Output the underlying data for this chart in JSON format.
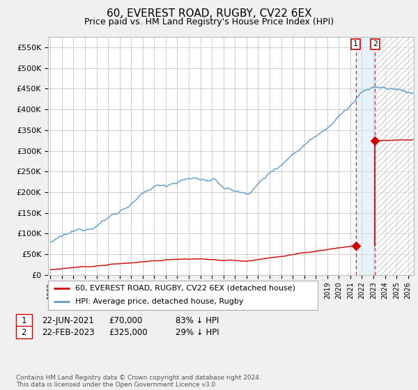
{
  "title": "60, EVEREST ROAD, RUGBY, CV22 6EX",
  "subtitle": "Price paid vs. HM Land Registry's House Price Index (HPI)",
  "title_fontsize": 11,
  "subtitle_fontsize": 9,
  "hpi_color": "#5b9bd5",
  "price_color": "#cc0000",
  "background_color": "#f0f0f0",
  "plot_bg_color": "#ffffff",
  "grid_color": "#cccccc",
  "ylim": [
    0,
    575000
  ],
  "yticks": [
    0,
    50000,
    100000,
    150000,
    200000,
    250000,
    300000,
    350000,
    400000,
    450000,
    500000,
    550000
  ],
  "ytick_labels": [
    "£0",
    "£50K",
    "£100K",
    "£150K",
    "£200K",
    "£250K",
    "£300K",
    "£350K",
    "£400K",
    "£450K",
    "£500K",
    "£550K"
  ],
  "legend_entry1": "60, EVEREST ROAD, RUGBY, CV22 6EX (detached house)",
  "legend_entry2": "HPI: Average price, detached house, Rugby",
  "note1_label": "1",
  "note1_date": "22-JUN-2021",
  "note1_price": "£70,000",
  "note1_hpi": "83% ↓ HPI",
  "note2_label": "2",
  "note2_date": "22-FEB-2023",
  "note2_price": "£325,000",
  "note2_hpi": "29% ↓ HPI",
  "footer": "Contains HM Land Registry data © Crown copyright and database right 2024.\nThis data is licensed under the Open Government Licence v3.0.",
  "marker1_year": 2021.47,
  "marker1_price": 70000,
  "marker2_year": 2023.13,
  "marker2_price": 325000
}
